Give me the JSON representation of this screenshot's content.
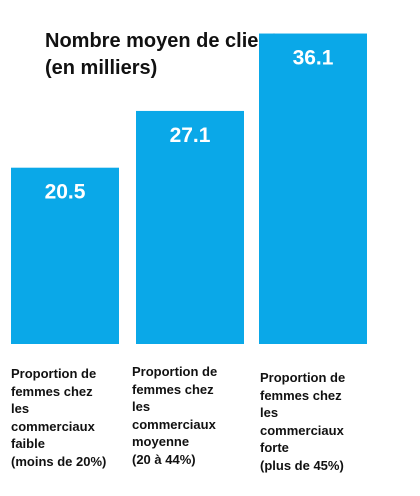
{
  "chart_data": {
    "type": "bar",
    "title_lines": [
      "Nombre moyen de clients",
      "(en milliers)"
    ],
    "categories": [
      [
        "Proportion de",
        "femmes chez",
        "les",
        "commerciaux",
        "faible",
        "(moins de 20%)"
      ],
      [
        "Proportion de",
        "femmes chez",
        "les",
        "commerciaux",
        "moyenne",
        "(20 à 44%)"
      ],
      [
        "Proportion de",
        "femmes chez",
        "les",
        "commerciaux",
        "forte",
        "(plus de 45%)"
      ]
    ],
    "values": [
      20.5,
      27.1,
      36.1
    ],
    "value_labels": [
      "20.5",
      "27.1",
      "36.1"
    ],
    "ylim": [
      0,
      40
    ],
    "grid": false,
    "colors": {
      "bar": "#0aa8e8",
      "value_text": "#ffffff",
      "label_text": "#111111"
    }
  }
}
